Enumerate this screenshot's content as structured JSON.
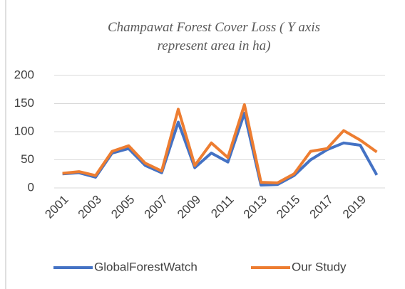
{
  "chart_data": {
    "type": "line",
    "title": "Champawat Forest Cover Loss ( Y axis represent area in ha)",
    "categories": [
      "2001",
      null,
      "2003",
      null,
      "2005",
      null,
      "2007",
      null,
      "2009",
      null,
      "2011",
      null,
      "2013",
      null,
      "2015",
      null,
      "2017",
      null,
      "2019",
      null
    ],
    "series": [
      {
        "name": "GlobalForestWatch",
        "color": "#4472c4",
        "values": [
          25,
          27,
          19,
          62,
          70,
          40,
          27,
          117,
          36,
          62,
          46,
          133,
          5,
          6,
          22,
          50,
          68,
          80,
          76,
          23
        ]
      },
      {
        "name": "Our Study",
        "color": "#ed7d31",
        "values": [
          26,
          29,
          22,
          65,
          75,
          44,
          30,
          140,
          40,
          80,
          54,
          148,
          10,
          9,
          25,
          65,
          70,
          102,
          85,
          64
        ]
      }
    ],
    "ylim": [
      0,
      200
    ],
    "yticks": [
      0,
      50,
      100,
      150,
      200
    ],
    "grid": true,
    "legend": "bottom"
  }
}
